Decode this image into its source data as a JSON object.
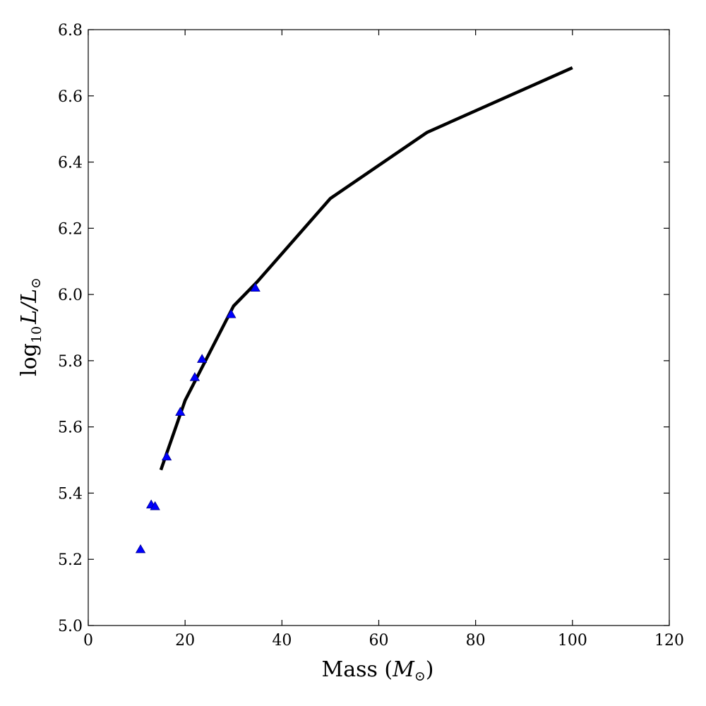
{
  "chart_data": {
    "type": "line",
    "title": "",
    "xlabel_text": "Mass (",
    "xlabel_symbol": "M",
    "xlabel_close": ")",
    "ylabel_log": "log",
    "ylabel_sub": "10",
    "ylabel_L": "L",
    "ylabel_slash": "/",
    "ylabel_L2": "L",
    "sun_symbol": "⊙",
    "xlim": [
      0,
      120
    ],
    "ylim": [
      5.0,
      6.8
    ],
    "xticks": [
      0,
      20,
      40,
      60,
      80,
      100,
      120
    ],
    "yticks": [
      5.0,
      5.2,
      5.4,
      5.6,
      5.8,
      6.0,
      6.2,
      6.4,
      6.6,
      6.8
    ],
    "grid": false,
    "series": [
      {
        "kind": "line",
        "color": "#000000",
        "points": [
          [
            15,
            5.47
          ],
          [
            20,
            5.68
          ],
          [
            30,
            5.965
          ],
          [
            35,
            6.04
          ],
          [
            50,
            6.29
          ],
          [
            70,
            6.49
          ],
          [
            100,
            6.685
          ]
        ]
      },
      {
        "kind": "scatter",
        "marker": "triangle",
        "color": "#0000ff",
        "points": [
          [
            10.8,
            5.23
          ],
          [
            13.0,
            5.365
          ],
          [
            13.8,
            5.36
          ],
          [
            16.2,
            5.51
          ],
          [
            19.0,
            5.645
          ],
          [
            22.0,
            5.75
          ],
          [
            23.5,
            5.805
          ],
          [
            29.5,
            5.94
          ],
          [
            34.5,
            6.02
          ]
        ]
      }
    ]
  }
}
